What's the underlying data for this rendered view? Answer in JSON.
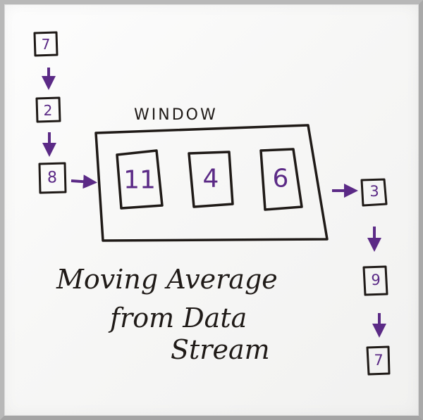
{
  "window_label": "WINDOW",
  "input_stream": [
    "7",
    "2",
    "8"
  ],
  "window_values": [
    "11",
    "4",
    "6"
  ],
  "output_stream": [
    "3",
    "9",
    "7"
  ],
  "caption": {
    "line1": "Moving Average",
    "line2": "from Data",
    "line3": "Stream"
  },
  "colors": {
    "ink": "#1f1a17",
    "marker_purple": "#5b2a86",
    "board": "#f7f7f6",
    "frame": "#b8b8b8"
  }
}
